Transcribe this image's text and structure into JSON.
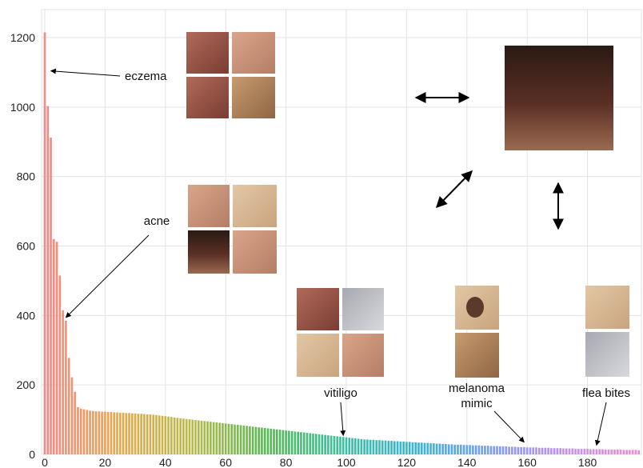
{
  "chart_data": {
    "type": "bar",
    "title": "",
    "xlabel": "",
    "ylabel": "",
    "xlim": [
      0,
      195
    ],
    "ylim": [
      0,
      1250
    ],
    "grid": true,
    "x_ticks": [
      0,
      20,
      40,
      60,
      80,
      100,
      120,
      140,
      160,
      180
    ],
    "y_ticks": [
      0,
      200,
      400,
      600,
      800,
      1000,
      1200
    ],
    "values": [
      1215,
      1003,
      912,
      620,
      612,
      515,
      415,
      385,
      278,
      222,
      180,
      136,
      132,
      130,
      128,
      126,
      125,
      124,
      124,
      123,
      123,
      122,
      122,
      121,
      121,
      120,
      120,
      119,
      119,
      118,
      118,
      117,
      117,
      116,
      115,
      115,
      114,
      113,
      112,
      111,
      110,
      109,
      108,
      106,
      105,
      104,
      103,
      102,
      101,
      100,
      99,
      98,
      97,
      96,
      95,
      94,
      93,
      92,
      91,
      90,
      89,
      88,
      87,
      86,
      85,
      84,
      83,
      82,
      81,
      80,
      79,
      78,
      77,
      76,
      75,
      74,
      73,
      72,
      71,
      70,
      69,
      68,
      67,
      66,
      65,
      64,
      63,
      62,
      61,
      60,
      59,
      58,
      57,
      56,
      55,
      54,
      53,
      52,
      51,
      50,
      49,
      48,
      47,
      46,
      45,
      44,
      43,
      43,
      42,
      42,
      41,
      41,
      40,
      40,
      39,
      39,
      38,
      38,
      37,
      37,
      36,
      36,
      35,
      35,
      34,
      34,
      33,
      33,
      32,
      32,
      31,
      31,
      30,
      30,
      29,
      29,
      28,
      28,
      28,
      27,
      27,
      27,
      26,
      26,
      26,
      25,
      25,
      25,
      24,
      24,
      24,
      23,
      23,
      23,
      22,
      22,
      22,
      21,
      21,
      21,
      20,
      20,
      20,
      20,
      19,
      19,
      19,
      19,
      18,
      18,
      18,
      18,
      17,
      17,
      17,
      17,
      16,
      16,
      16,
      16,
      16,
      15,
      15,
      15,
      15,
      15,
      14,
      14,
      14,
      14,
      14,
      14,
      13,
      13,
      13,
      13,
      13,
      12
    ],
    "color_gradient": [
      "#f28a8a",
      "#e8a84c",
      "#b6b94a",
      "#58b955",
      "#3cc0a0",
      "#38b4d8",
      "#7a9ef0",
      "#c48ff2",
      "#f08ad0"
    ],
    "annotations": [
      {
        "label": "eczema",
        "x": 2,
        "y": 1095,
        "text_side": "right"
      },
      {
        "label": "acne",
        "x": 7,
        "y": 385,
        "text_side": "above"
      },
      {
        "label": "vitiligo",
        "x": 99,
        "y": 45,
        "text_side": "above"
      },
      {
        "label": "melanoma\nmimic",
        "x": 159,
        "y": 26,
        "text_side": "above"
      },
      {
        "label": "flea bites",
        "x": 183,
        "y": 17,
        "text_side": "above"
      }
    ]
  }
}
